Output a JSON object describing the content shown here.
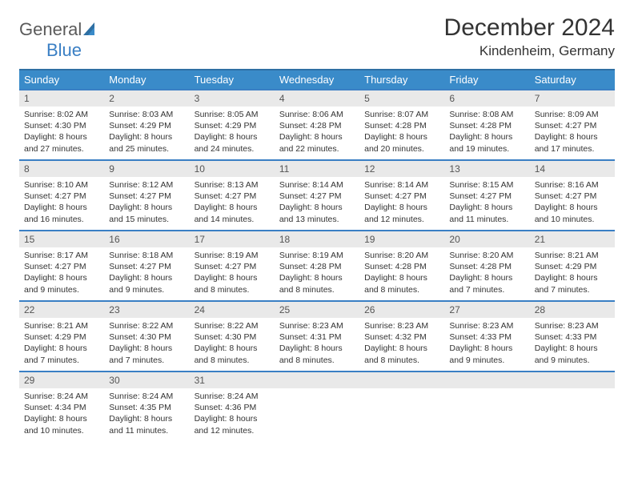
{
  "logo": {
    "part1": "General",
    "part2": "Blue"
  },
  "title": "December 2024",
  "location": "Kindenheim, Germany",
  "colors": {
    "header_bg": "#3a8bc9",
    "header_border": "#2e6fa3",
    "daynum_bg": "#e9e9e9",
    "cell_border": "#3a7fc4",
    "logo_gray": "#5a5a5a",
    "logo_blue": "#3a7fc4",
    "text": "#333333",
    "background": "#ffffff"
  },
  "typography": {
    "title_fontsize": 30,
    "location_fontsize": 17,
    "dayhead_fontsize": 13,
    "daynum_fontsize": 12,
    "body_fontsize": 10.5
  },
  "day_names": [
    "Sunday",
    "Monday",
    "Tuesday",
    "Wednesday",
    "Thursday",
    "Friday",
    "Saturday"
  ],
  "weeks": [
    [
      {
        "n": "1",
        "sr": "Sunrise: 8:02 AM",
        "ss": "Sunset: 4:30 PM",
        "d1": "Daylight: 8 hours",
        "d2": "and 27 minutes."
      },
      {
        "n": "2",
        "sr": "Sunrise: 8:03 AM",
        "ss": "Sunset: 4:29 PM",
        "d1": "Daylight: 8 hours",
        "d2": "and 25 minutes."
      },
      {
        "n": "3",
        "sr": "Sunrise: 8:05 AM",
        "ss": "Sunset: 4:29 PM",
        "d1": "Daylight: 8 hours",
        "d2": "and 24 minutes."
      },
      {
        "n": "4",
        "sr": "Sunrise: 8:06 AM",
        "ss": "Sunset: 4:28 PM",
        "d1": "Daylight: 8 hours",
        "d2": "and 22 minutes."
      },
      {
        "n": "5",
        "sr": "Sunrise: 8:07 AM",
        "ss": "Sunset: 4:28 PM",
        "d1": "Daylight: 8 hours",
        "d2": "and 20 minutes."
      },
      {
        "n": "6",
        "sr": "Sunrise: 8:08 AM",
        "ss": "Sunset: 4:28 PM",
        "d1": "Daylight: 8 hours",
        "d2": "and 19 minutes."
      },
      {
        "n": "7",
        "sr": "Sunrise: 8:09 AM",
        "ss": "Sunset: 4:27 PM",
        "d1": "Daylight: 8 hours",
        "d2": "and 17 minutes."
      }
    ],
    [
      {
        "n": "8",
        "sr": "Sunrise: 8:10 AM",
        "ss": "Sunset: 4:27 PM",
        "d1": "Daylight: 8 hours",
        "d2": "and 16 minutes."
      },
      {
        "n": "9",
        "sr": "Sunrise: 8:12 AM",
        "ss": "Sunset: 4:27 PM",
        "d1": "Daylight: 8 hours",
        "d2": "and 15 minutes."
      },
      {
        "n": "10",
        "sr": "Sunrise: 8:13 AM",
        "ss": "Sunset: 4:27 PM",
        "d1": "Daylight: 8 hours",
        "d2": "and 14 minutes."
      },
      {
        "n": "11",
        "sr": "Sunrise: 8:14 AM",
        "ss": "Sunset: 4:27 PM",
        "d1": "Daylight: 8 hours",
        "d2": "and 13 minutes."
      },
      {
        "n": "12",
        "sr": "Sunrise: 8:14 AM",
        "ss": "Sunset: 4:27 PM",
        "d1": "Daylight: 8 hours",
        "d2": "and 12 minutes."
      },
      {
        "n": "13",
        "sr": "Sunrise: 8:15 AM",
        "ss": "Sunset: 4:27 PM",
        "d1": "Daylight: 8 hours",
        "d2": "and 11 minutes."
      },
      {
        "n": "14",
        "sr": "Sunrise: 8:16 AM",
        "ss": "Sunset: 4:27 PM",
        "d1": "Daylight: 8 hours",
        "d2": "and 10 minutes."
      }
    ],
    [
      {
        "n": "15",
        "sr": "Sunrise: 8:17 AM",
        "ss": "Sunset: 4:27 PM",
        "d1": "Daylight: 8 hours",
        "d2": "and 9 minutes."
      },
      {
        "n": "16",
        "sr": "Sunrise: 8:18 AM",
        "ss": "Sunset: 4:27 PM",
        "d1": "Daylight: 8 hours",
        "d2": "and 9 minutes."
      },
      {
        "n": "17",
        "sr": "Sunrise: 8:19 AM",
        "ss": "Sunset: 4:27 PM",
        "d1": "Daylight: 8 hours",
        "d2": "and 8 minutes."
      },
      {
        "n": "18",
        "sr": "Sunrise: 8:19 AM",
        "ss": "Sunset: 4:28 PM",
        "d1": "Daylight: 8 hours",
        "d2": "and 8 minutes."
      },
      {
        "n": "19",
        "sr": "Sunrise: 8:20 AM",
        "ss": "Sunset: 4:28 PM",
        "d1": "Daylight: 8 hours",
        "d2": "and 8 minutes."
      },
      {
        "n": "20",
        "sr": "Sunrise: 8:20 AM",
        "ss": "Sunset: 4:28 PM",
        "d1": "Daylight: 8 hours",
        "d2": "and 7 minutes."
      },
      {
        "n": "21",
        "sr": "Sunrise: 8:21 AM",
        "ss": "Sunset: 4:29 PM",
        "d1": "Daylight: 8 hours",
        "d2": "and 7 minutes."
      }
    ],
    [
      {
        "n": "22",
        "sr": "Sunrise: 8:21 AM",
        "ss": "Sunset: 4:29 PM",
        "d1": "Daylight: 8 hours",
        "d2": "and 7 minutes."
      },
      {
        "n": "23",
        "sr": "Sunrise: 8:22 AM",
        "ss": "Sunset: 4:30 PM",
        "d1": "Daylight: 8 hours",
        "d2": "and 7 minutes."
      },
      {
        "n": "24",
        "sr": "Sunrise: 8:22 AM",
        "ss": "Sunset: 4:30 PM",
        "d1": "Daylight: 8 hours",
        "d2": "and 8 minutes."
      },
      {
        "n": "25",
        "sr": "Sunrise: 8:23 AM",
        "ss": "Sunset: 4:31 PM",
        "d1": "Daylight: 8 hours",
        "d2": "and 8 minutes."
      },
      {
        "n": "26",
        "sr": "Sunrise: 8:23 AM",
        "ss": "Sunset: 4:32 PM",
        "d1": "Daylight: 8 hours",
        "d2": "and 8 minutes."
      },
      {
        "n": "27",
        "sr": "Sunrise: 8:23 AM",
        "ss": "Sunset: 4:33 PM",
        "d1": "Daylight: 8 hours",
        "d2": "and 9 minutes."
      },
      {
        "n": "28",
        "sr": "Sunrise: 8:23 AM",
        "ss": "Sunset: 4:33 PM",
        "d1": "Daylight: 8 hours",
        "d2": "and 9 minutes."
      }
    ],
    [
      {
        "n": "29",
        "sr": "Sunrise: 8:24 AM",
        "ss": "Sunset: 4:34 PM",
        "d1": "Daylight: 8 hours",
        "d2": "and 10 minutes."
      },
      {
        "n": "30",
        "sr": "Sunrise: 8:24 AM",
        "ss": "Sunset: 4:35 PM",
        "d1": "Daylight: 8 hours",
        "d2": "and 11 minutes."
      },
      {
        "n": "31",
        "sr": "Sunrise: 8:24 AM",
        "ss": "Sunset: 4:36 PM",
        "d1": "Daylight: 8 hours",
        "d2": "and 12 minutes."
      },
      {
        "n": "",
        "sr": "",
        "ss": "",
        "d1": "",
        "d2": "",
        "empty": true
      },
      {
        "n": "",
        "sr": "",
        "ss": "",
        "d1": "",
        "d2": "",
        "empty": true
      },
      {
        "n": "",
        "sr": "",
        "ss": "",
        "d1": "",
        "d2": "",
        "empty": true
      },
      {
        "n": "",
        "sr": "",
        "ss": "",
        "d1": "",
        "d2": "",
        "empty": true
      }
    ]
  ]
}
